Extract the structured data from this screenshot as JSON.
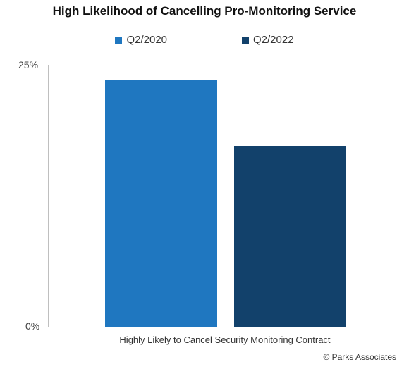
{
  "chart_data": {
    "type": "bar",
    "title": "High Likelihood of Cancelling Pro-Monitoring Service",
    "categories": [
      "Highly Likely to Cancel Security Monitoring Contract"
    ],
    "series": [
      {
        "name": "Q2/2020",
        "values": [
          23.6
        ],
        "color": "#1f77c0"
      },
      {
        "name": "Q2/2022",
        "values": [
          17.3
        ],
        "color": "#12416b"
      }
    ],
    "ylim": [
      0,
      25
    ],
    "y_ticks": [
      "25%",
      "0%"
    ],
    "grid": false,
    "legend_position": "top-center"
  },
  "footer": {
    "credit": "© Parks Associates"
  }
}
